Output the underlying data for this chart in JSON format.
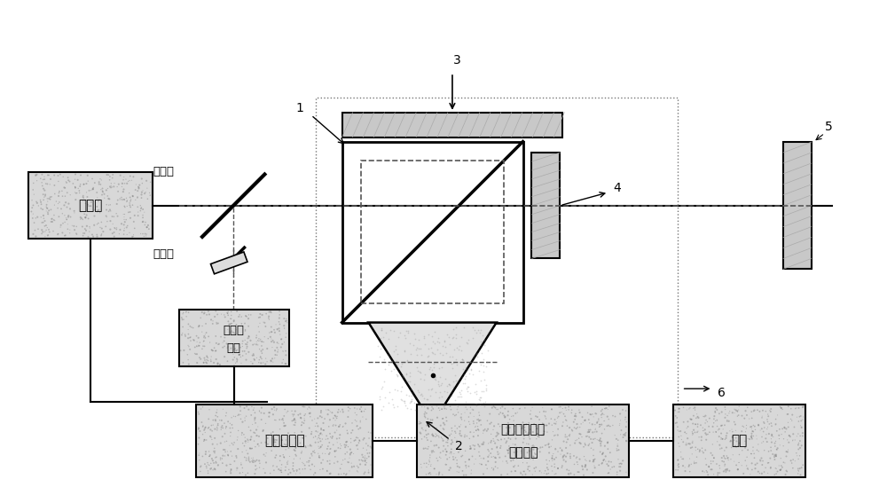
{
  "bg_color": "#ffffff",
  "line_color": "#000000",
  "dashed_color": "#555555",
  "hatched_fill": "#c8c8c8",
  "box_fill": "#d8d8d8",
  "labels": {
    "laser": "激光器",
    "mirror": "反光镜",
    "polarizer": "检偏器",
    "detector": "光电接收器",
    "counter": "激光计数卡",
    "compensation": "误差补偿和单位计算卡",
    "display": "显示",
    "label1": "1",
    "label2": "2",
    "label3": "3",
    "label4": "4",
    "label5": "5",
    "label6": "6"
  },
  "figsize": [
    10.0,
    5.49
  ],
  "dpi": 100
}
